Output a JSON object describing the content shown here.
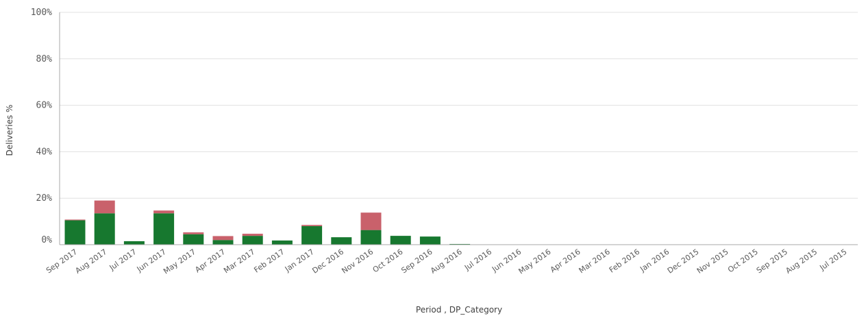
{
  "chart_data": {
    "type": "bar",
    "stacked": true,
    "categories": [
      "Sep 2017",
      "Aug 2017",
      "Jul 2017",
      "Jun 2017",
      "May 2017",
      "Apr 2017",
      "Mar 2017",
      "Feb 2017",
      "Jan 2017",
      "Dec 2016",
      "Nov 2016",
      "Oct 2016",
      "Sep 2016",
      "Aug 2016",
      "Jul 2016",
      "Jun 2016",
      "May 2016",
      "Apr 2016",
      "Mar 2016",
      "Feb 2016",
      "Jan 2016",
      "Dec 2015",
      "Nov 2015",
      "Oct 2015",
      "Sep 2015",
      "Aug 2015",
      "Jul 2015"
    ],
    "series": [
      {
        "color": "#17782f",
        "values": [
          10.5,
          13.5,
          1.5,
          13.5,
          4.5,
          2.0,
          3.8,
          1.8,
          8.0,
          3.2,
          6.3,
          3.8,
          3.5,
          0.3,
          0,
          0,
          0,
          0,
          0,
          0,
          0,
          0,
          0,
          0,
          0,
          0,
          0
        ]
      },
      {
        "color": "#c9616b",
        "values": [
          0.3,
          5.5,
          0,
          1.2,
          0.8,
          1.7,
          0.9,
          0,
          0.5,
          0,
          7.5,
          0,
          0,
          0,
          0,
          0,
          0,
          0,
          0,
          0,
          0,
          0,
          0,
          0,
          0,
          0,
          0
        ]
      }
    ],
    "xlabel": "Period , DP_Category",
    "ylabel": "Deliveries %",
    "ylim": [
      0,
      100
    ],
    "yticks": [
      "0%",
      "20%",
      "40%",
      "60%",
      "80%",
      "100%"
    ],
    "grid": true
  }
}
